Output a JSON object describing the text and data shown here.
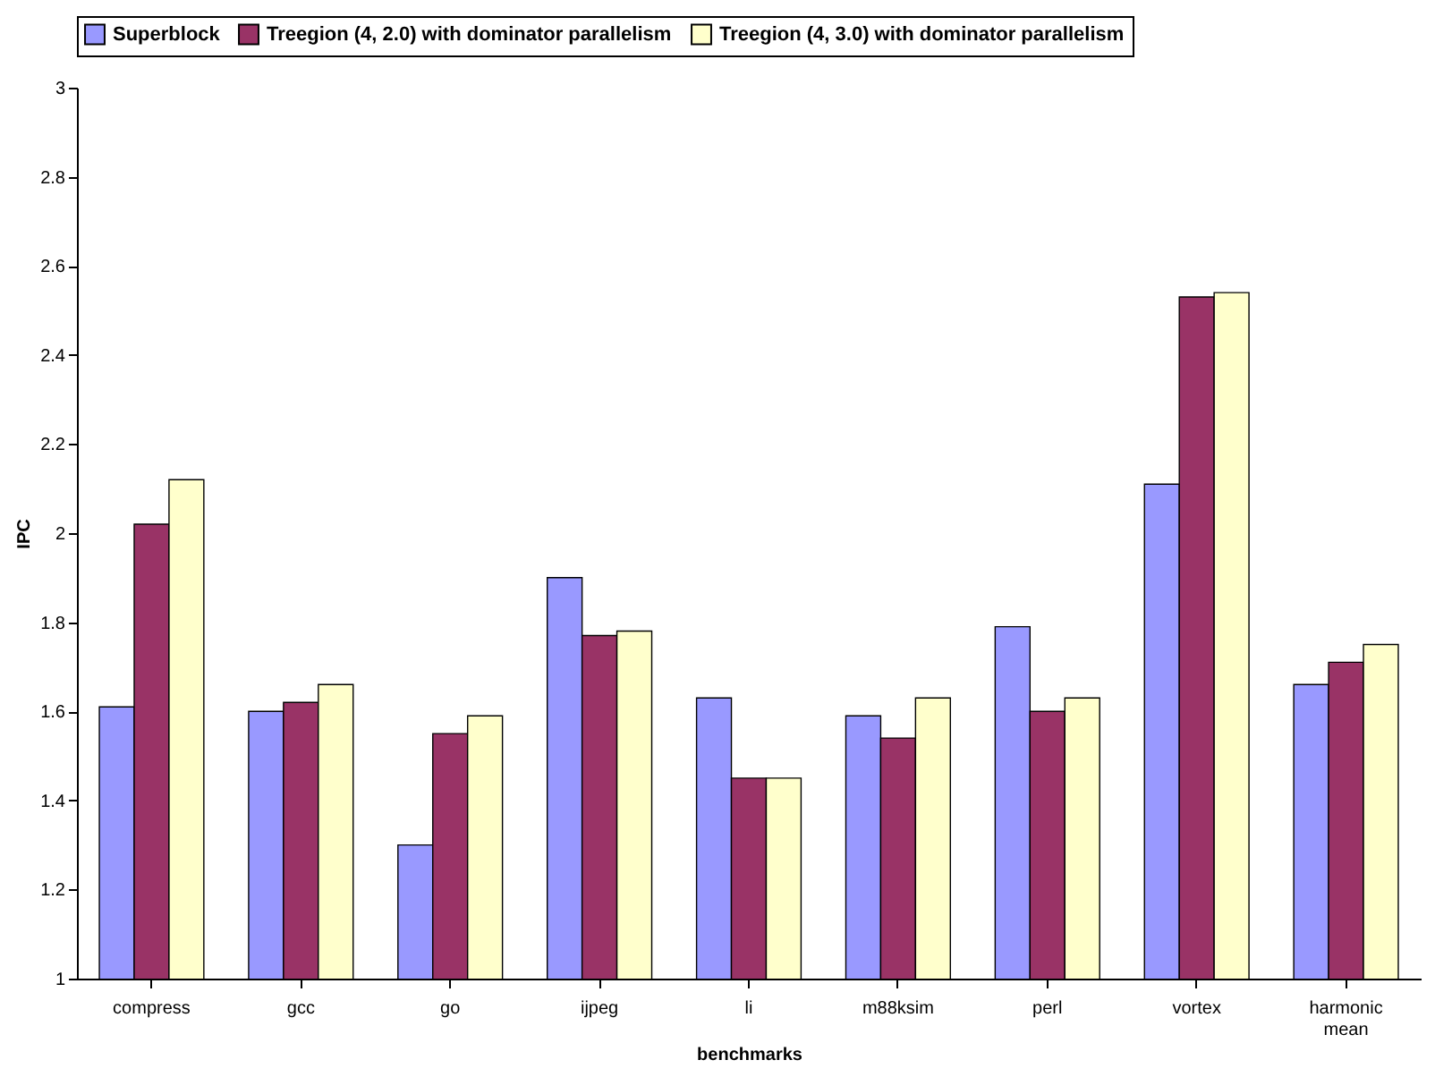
{
  "chart_data": {
    "type": "bar",
    "xlabel": "benchmarks",
    "ylabel": "IPC",
    "categories": [
      "compress",
      "gcc",
      "go",
      "ijpeg",
      "li",
      "m88ksim",
      "perl",
      "vortex",
      "harmonic mean"
    ],
    "series": [
      {
        "name": "Superblock",
        "color": "#9999ff",
        "values": [
          1.61,
          1.6,
          1.3,
          1.9,
          1.63,
          1.59,
          1.79,
          2.11,
          1.66
        ]
      },
      {
        "name": "Treegion (4, 2.0) with dominator parallelism",
        "color": "#993366",
        "values": [
          2.02,
          1.62,
          1.55,
          1.77,
          1.45,
          1.54,
          1.6,
          2.53,
          1.71
        ]
      },
      {
        "name": "Treegion (4, 3.0) with dominator parallelism",
        "color": "#ffffcc",
        "values": [
          2.12,
          1.66,
          1.59,
          1.78,
          1.45,
          1.63,
          1.63,
          2.54,
          1.75
        ]
      }
    ],
    "ylim": [
      1,
      3
    ],
    "yticks": [
      1,
      1.2,
      1.4,
      1.6,
      1.8,
      2,
      2.2,
      2.4,
      2.6,
      2.8,
      3
    ],
    "grid": false,
    "legend": "top"
  }
}
